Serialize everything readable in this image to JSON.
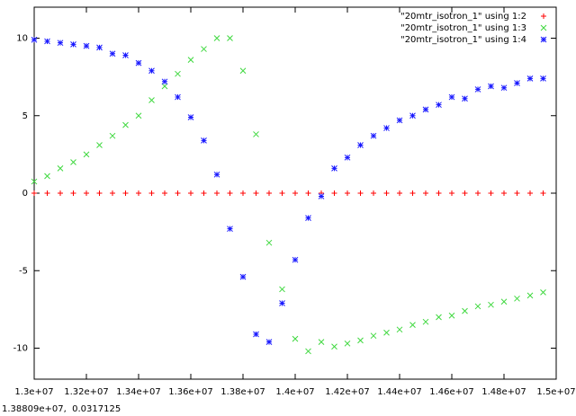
{
  "chart_data": {
    "type": "scatter",
    "x": [
      13000000,
      13050000,
      13100000,
      13150000,
      13200000,
      13250000,
      13300000,
      13350000,
      13400000,
      13450000,
      13500000,
      13550000,
      13600000,
      13650000,
      13700000,
      13750000,
      13800000,
      13850000,
      13900000,
      13950000,
      14000000,
      14050000,
      14100000,
      14150000,
      14200000,
      14250000,
      14300000,
      14350000,
      14400000,
      14450000,
      14500000,
      14550000,
      14600000,
      14650000,
      14700000,
      14750000,
      14800000,
      14850000,
      14900000,
      14950000
    ],
    "series": [
      {
        "name": "\"20mtr_isotron_1\" using 1:2",
        "color": "#ff0000",
        "marker": "plus",
        "values": [
          0,
          0,
          0,
          0,
          0,
          0,
          0,
          0,
          0,
          0,
          0,
          0,
          0,
          0,
          0,
          0,
          0,
          0,
          0,
          0,
          0,
          0,
          0,
          0,
          0,
          0,
          0,
          0,
          0,
          0,
          0,
          0,
          0,
          0,
          0,
          0,
          0,
          0,
          0,
          0
        ]
      },
      {
        "name": "\"20mtr_isotron_1\" using 1:3",
        "color": "#3fd83f",
        "marker": "cross",
        "values": [
          0.75,
          1.1,
          1.6,
          2.0,
          2.5,
          3.1,
          3.7,
          4.4,
          5.0,
          6.0,
          6.9,
          7.7,
          8.6,
          9.3,
          10.0,
          10.0,
          7.9,
          3.8,
          -3.2,
          -6.2,
          -9.4,
          -10.2,
          -9.6,
          -9.9,
          -9.7,
          -9.5,
          -9.2,
          -9.0,
          -8.8,
          -8.5,
          -8.3,
          -8.0,
          -7.9,
          -7.6,
          -7.3,
          -7.2,
          -7.0,
          -6.8,
          -6.6,
          -6.4
        ]
      },
      {
        "name": "\"20mtr_isotron_1\" using 1:4",
        "color": "#1a1aff",
        "marker": "star",
        "values": [
          9.9,
          9.8,
          9.7,
          9.6,
          9.5,
          9.4,
          9.0,
          8.9,
          8.4,
          7.9,
          7.2,
          6.2,
          4.9,
          3.4,
          1.2,
          -2.3,
          -5.4,
          -9.1,
          -9.6,
          -7.1,
          -4.3,
          -1.6,
          -0.2,
          1.6,
          2.3,
          3.1,
          3.7,
          4.2,
          4.7,
          5.0,
          5.4,
          5.7,
          6.2,
          6.1,
          6.7,
          6.9,
          6.8,
          7.1,
          7.4,
          7.4
        ]
      }
    ],
    "xlim": [
      13000000,
      15000000
    ],
    "xticks": [
      {
        "value": 13000000,
        "label": "1.3e+07"
      },
      {
        "value": 13200000,
        "label": "1.32e+07"
      },
      {
        "value": 13400000,
        "label": "1.34e+07"
      },
      {
        "value": 13600000,
        "label": "1.36e+07"
      },
      {
        "value": 13800000,
        "label": "1.38e+07"
      },
      {
        "value": 14000000,
        "label": "1.4e+07"
      },
      {
        "value": 14200000,
        "label": "1.42e+07"
      },
      {
        "value": 14400000,
        "label": "1.44e+07"
      },
      {
        "value": 14600000,
        "label": "1.46e+07"
      },
      {
        "value": 14800000,
        "label": "1.48e+07"
      },
      {
        "value": 15000000,
        "label": "1.5e+07"
      }
    ],
    "ylim": [
      -12,
      12
    ],
    "yticks": [
      -10,
      -5,
      0,
      5,
      10
    ],
    "legend": "top-right",
    "status_text": "1.38809e+07,  0.0317125"
  }
}
